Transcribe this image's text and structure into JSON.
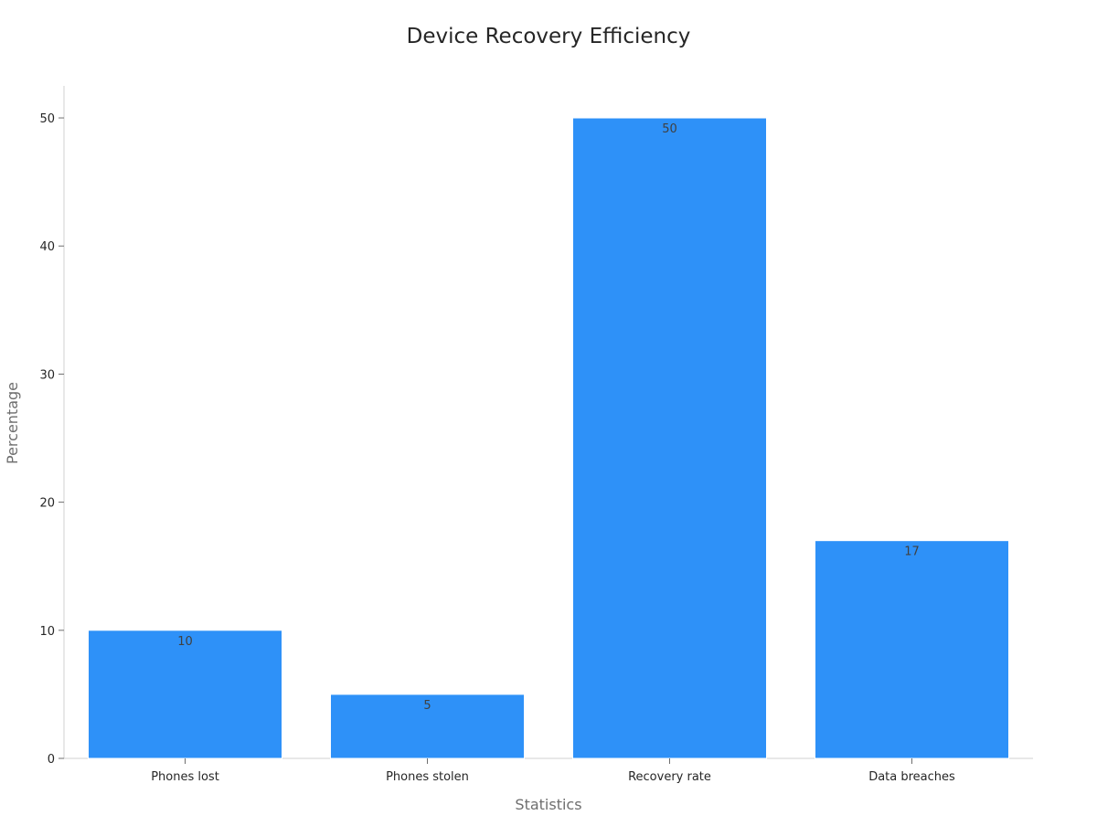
{
  "chart_data": {
    "type": "bar",
    "title": "Device Recovery Efficiency",
    "xlabel": "Statistics",
    "ylabel": "Percentage",
    "categories": [
      "Phones lost",
      "Phones stolen",
      "Recovery rate",
      "Data breaches"
    ],
    "values": [
      10,
      5,
      50,
      17
    ],
    "data_labels": [
      "10",
      "5",
      "50",
      "17"
    ],
    "ylim": [
      0,
      52.5
    ],
    "yticks": [
      0,
      10,
      20,
      30,
      40,
      50
    ],
    "ytick_labels": [
      "0",
      "10",
      "20",
      "30",
      "40",
      "50"
    ],
    "bar_color": "#2e91f8",
    "grid": false,
    "legend": "none"
  }
}
